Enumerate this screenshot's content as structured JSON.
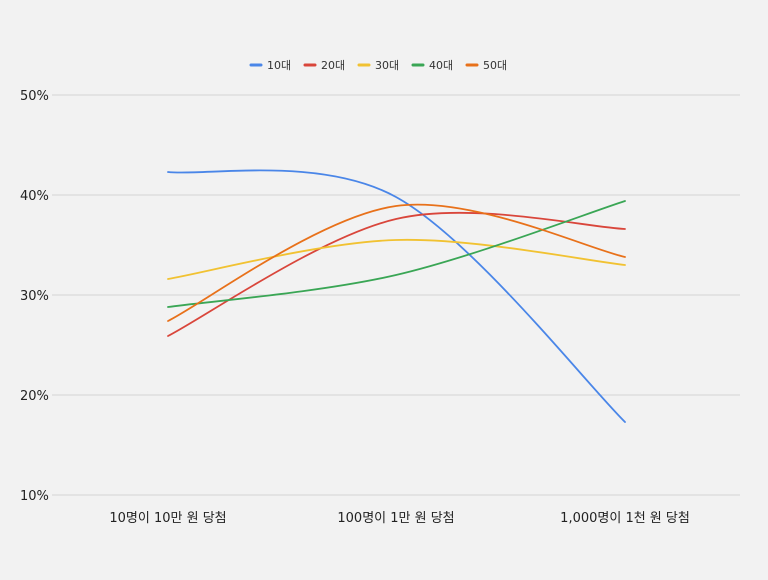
{
  "chart_data": {
    "type": "line",
    "categories": [
      "10명이 10만 원 당첨",
      "100명이 1만 원 당첨",
      "1,000명이 1천 원 당첨"
    ],
    "series": [
      {
        "name": "10대",
        "color": "#4a86e8",
        "values": [
          42.3,
          39.8,
          17.3
        ]
      },
      {
        "name": "20대",
        "color": "#d9463b",
        "values": [
          25.9,
          37.6,
          36.6
        ]
      },
      {
        "name": "30대",
        "color": "#f1c232",
        "values": [
          31.6,
          35.5,
          33.0
        ]
      },
      {
        "name": "40대",
        "color": "#3aa655",
        "values": [
          28.8,
          32.0,
          39.4
        ]
      },
      {
        "name": "50대",
        "color": "#e8711a",
        "values": [
          27.4,
          38.9,
          33.8
        ]
      }
    ],
    "ylim": [
      10,
      50
    ],
    "y_ticks": [
      {
        "value": 10,
        "label": "10%"
      },
      {
        "value": 20,
        "label": "20%"
      },
      {
        "value": 30,
        "label": "30%"
      },
      {
        "value": 40,
        "label": "40%"
      },
      {
        "value": 50,
        "label": "50%"
      }
    ],
    "grid": true,
    "legend_position": "top",
    "smooth": true
  }
}
